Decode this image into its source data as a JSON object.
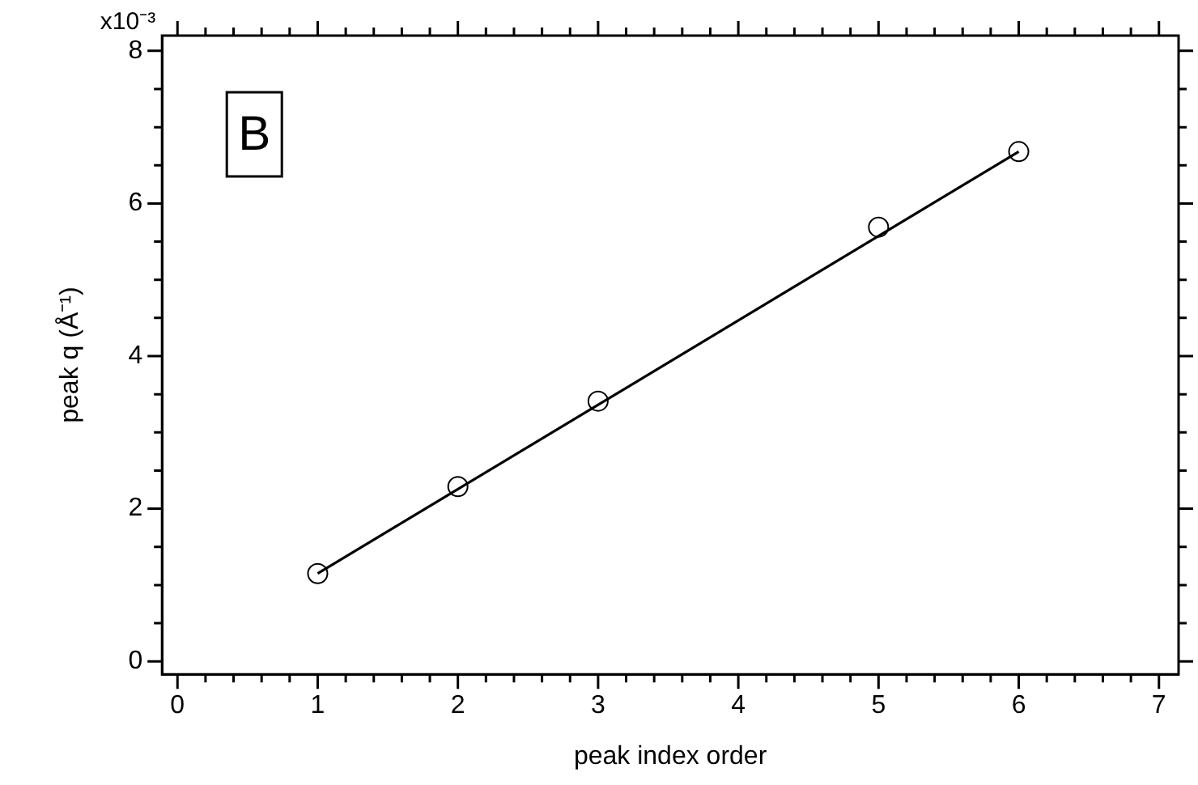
{
  "chart_data": {
    "type": "scatter",
    "xlabel": "peak index order",
    "ylabel": "peak q (Å⁻¹)",
    "annotations": [
      "B",
      "x10⁻³"
    ],
    "series": [
      {
        "color": "#000000",
        "marker": "circle",
        "x": [
          1,
          2,
          3,
          5,
          6
        ],
        "values": [
          1.15,
          2.29,
          3.41,
          5.69,
          6.68
        ]
      },
      {
        "type": "line",
        "color": "#000000",
        "marker": "none",
        "line_style": "solid",
        "x": [
          1,
          6
        ],
        "values": [
          1.15,
          6.68
        ]
      }
    ],
    "xlim": [
      -0.11,
      7.14
    ],
    "ylim": [
      -0.17,
      8.2
    ],
    "xticks": [
      0,
      {
        "value": 0.2,
        "label": null
      },
      {
        "value": 0.4,
        "label": null
      },
      {
        "value": 0.6,
        "label": null
      },
      {
        "value": 0.8,
        "label": null
      },
      1,
      {
        "value": 1.2,
        "label": null
      },
      {
        "value": 1.4,
        "label": null
      },
      {
        "value": 1.6,
        "label": null
      },
      {
        "value": 1.8,
        "label": null
      },
      2,
      {
        "value": 2.2,
        "label": null
      },
      {
        "value": 2.4,
        "label": null
      },
      {
        "value": 2.6,
        "label": null
      },
      {
        "value": 2.8,
        "label": null
      },
      3,
      {
        "value": 3.2,
        "label": null
      },
      {
        "value": 3.4,
        "label": null
      },
      {
        "value": 3.6,
        "label": null
      },
      {
        "value": 3.8,
        "label": null
      },
      4,
      {
        "value": 4.2,
        "label": null
      },
      {
        "value": 4.4,
        "label": null
      },
      {
        "value": 4.6,
        "label": null
      },
      {
        "value": 4.8,
        "label": null
      },
      5,
      {
        "value": 5.2,
        "label": null
      },
      {
        "value": 5.4,
        "label": null
      },
      {
        "value": 5.6,
        "label": null
      },
      {
        "value": 5.8,
        "label": null
      },
      6,
      {
        "value": 6.2,
        "label": null
      },
      {
        "value": 6.4,
        "label": null
      },
      {
        "value": 6.6,
        "label": null
      },
      {
        "value": 6.8,
        "label": null
      },
      7
    ],
    "yticks": [
      0,
      {
        "value": 0.5,
        "label": null
      },
      {
        "value": 1,
        "label": null
      },
      {
        "value": 1.5,
        "label": null
      },
      2,
      {
        "value": 2.5,
        "label": null
      },
      {
        "value": 3,
        "label": null
      },
      {
        "value": 3.5,
        "label": null
      },
      4,
      {
        "value": 4.5,
        "label": null
      },
      {
        "value": 5,
        "label": null
      },
      {
        "value": 5.5,
        "label": null
      },
      6,
      {
        "value": 6.5,
        "label": null
      },
      {
        "value": 7,
        "label": null
      },
      {
        "value": 7.5,
        "label": null
      },
      8
    ],
    "grid": false,
    "legend": false
  }
}
